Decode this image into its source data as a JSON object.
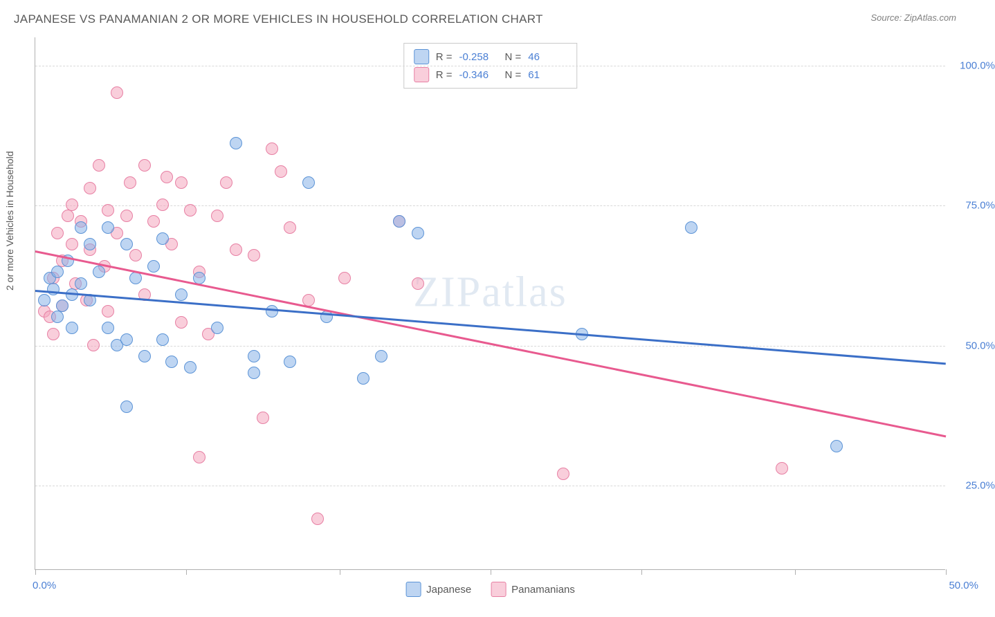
{
  "title": "JAPANESE VS PANAMANIAN 2 OR MORE VEHICLES IN HOUSEHOLD CORRELATION CHART",
  "source": "Source: ZipAtlas.com",
  "watermark": "ZIPatlas",
  "chart": {
    "type": "scatter",
    "ylabel": "2 or more Vehicles in Household",
    "xlim": [
      0,
      50
    ],
    "ylim": [
      10,
      105
    ],
    "xtick_positions": [
      0,
      8.3,
      16.7,
      25,
      33.3,
      41.7,
      50
    ],
    "xtick_labels": {
      "first": "0.0%",
      "last": "50.0%"
    },
    "ytick_positions": [
      25,
      50,
      75,
      100
    ],
    "ytick_labels": [
      "25.0%",
      "50.0%",
      "75.0%",
      "100.0%"
    ],
    "grid_color": "#d8d8d8",
    "background_color": "#ffffff",
    "marker_size": 18,
    "series": {
      "japanese": {
        "label": "Japanese",
        "color_fill": "rgba(137,179,232,0.55)",
        "color_stroke": "#5b93d6",
        "trend_color": "#3b6fc7",
        "R": "-0.258",
        "N": "46",
        "trend": {
          "x1": 0,
          "y1": 60,
          "x2": 50,
          "y2": 47
        },
        "points": [
          [
            0.5,
            58
          ],
          [
            0.8,
            62
          ],
          [
            1,
            60
          ],
          [
            1.2,
            55
          ],
          [
            1.2,
            63
          ],
          [
            1.5,
            57
          ],
          [
            1.8,
            65
          ],
          [
            2,
            59
          ],
          [
            2,
            53
          ],
          [
            2.5,
            71
          ],
          [
            2.5,
            61
          ],
          [
            3,
            68
          ],
          [
            3,
            58
          ],
          [
            3.5,
            63
          ],
          [
            4,
            71
          ],
          [
            4,
            53
          ],
          [
            4.5,
            50
          ],
          [
            5,
            51
          ],
          [
            5,
            68
          ],
          [
            5,
            39
          ],
          [
            5.5,
            62
          ],
          [
            6,
            48
          ],
          [
            6.5,
            64
          ],
          [
            7,
            51
          ],
          [
            7,
            69
          ],
          [
            7.5,
            47
          ],
          [
            8,
            59
          ],
          [
            8.5,
            46
          ],
          [
            9,
            62
          ],
          [
            10,
            53
          ],
          [
            11,
            86
          ],
          [
            12,
            48
          ],
          [
            12,
            45
          ],
          [
            13,
            56
          ],
          [
            14,
            47
          ],
          [
            15,
            79
          ],
          [
            16,
            55
          ],
          [
            18,
            44
          ],
          [
            19,
            48
          ],
          [
            20,
            72
          ],
          [
            21,
            70
          ],
          [
            30,
            52
          ],
          [
            36,
            71
          ],
          [
            44,
            32
          ]
        ]
      },
      "panamanians": {
        "label": "Panamanians",
        "color_fill": "rgba(244,166,189,0.55)",
        "color_stroke": "#e77fa3",
        "trend_color": "#e85a8f",
        "R": "-0.346",
        "N": "61",
        "trend": {
          "x1": 0,
          "y1": 67,
          "x2": 50,
          "y2": 34
        },
        "points": [
          [
            0.5,
            56
          ],
          [
            0.8,
            55
          ],
          [
            1,
            62
          ],
          [
            1,
            52
          ],
          [
            1.2,
            70
          ],
          [
            1.5,
            57
          ],
          [
            1.5,
            65
          ],
          [
            1.8,
            73
          ],
          [
            2,
            68
          ],
          [
            2,
            75
          ],
          [
            2.2,
            61
          ],
          [
            2.5,
            72
          ],
          [
            2.8,
            58
          ],
          [
            3,
            78
          ],
          [
            3,
            67
          ],
          [
            3.2,
            50
          ],
          [
            3.5,
            82
          ],
          [
            3.8,
            64
          ],
          [
            4,
            74
          ],
          [
            4,
            56
          ],
          [
            4.5,
            95
          ],
          [
            4.5,
            70
          ],
          [
            5,
            73
          ],
          [
            5.2,
            79
          ],
          [
            5.5,
            66
          ],
          [
            6,
            82
          ],
          [
            6,
            59
          ],
          [
            6.5,
            72
          ],
          [
            7,
            75
          ],
          [
            7.2,
            80
          ],
          [
            7.5,
            68
          ],
          [
            8,
            79
          ],
          [
            8,
            54
          ],
          [
            8.5,
            74
          ],
          [
            9,
            63
          ],
          [
            9,
            30
          ],
          [
            9.5,
            52
          ],
          [
            10,
            73
          ],
          [
            10.5,
            79
          ],
          [
            11,
            67
          ],
          [
            12,
            66
          ],
          [
            12.5,
            37
          ],
          [
            13,
            85
          ],
          [
            13.5,
            81
          ],
          [
            14,
            71
          ],
          [
            15,
            58
          ],
          [
            15.5,
            19
          ],
          [
            17,
            62
          ],
          [
            20,
            72
          ],
          [
            21,
            61
          ],
          [
            29,
            27
          ],
          [
            41,
            28
          ]
        ]
      }
    },
    "legend_top_labels": {
      "R_prefix": "R = ",
      "N_prefix": "N = "
    }
  }
}
